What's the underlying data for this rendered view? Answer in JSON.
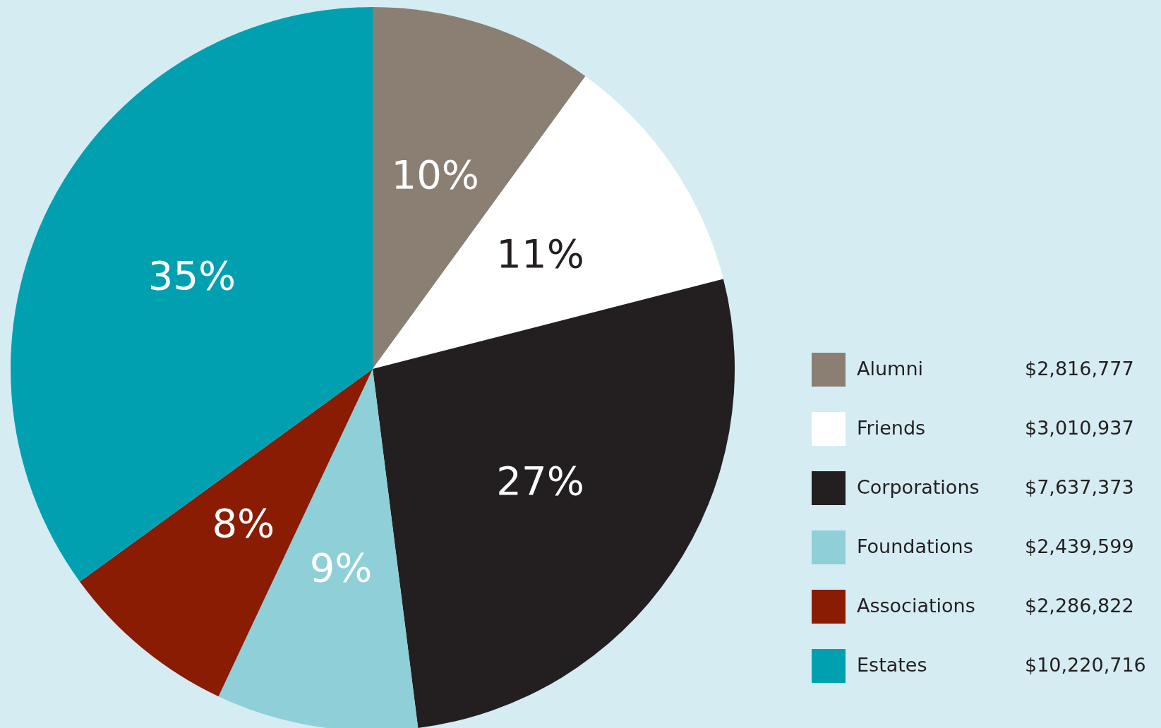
{
  "chart_data": {
    "type": "pie",
    "categories": [
      "Alumni",
      "Friends",
      "Corporations",
      "Foundations",
      "Associations",
      "Estates"
    ],
    "values": [
      10,
      11,
      27,
      9,
      8,
      35
    ],
    "annotations": [
      "$2,816,777",
      "$3,010,937",
      "$7,637,373",
      "$2,439,599",
      "$2,286,822",
      "$10,220,716"
    ],
    "colors": [
      "#8a7f72",
      "#ffffff",
      "#231f20",
      "#8ecfd8",
      "#8a1c04",
      "#00a0b0"
    ],
    "value_labels": [
      "10%",
      "11%",
      "27%",
      "9%",
      "8%",
      "35%"
    ],
    "legend": "right"
  }
}
